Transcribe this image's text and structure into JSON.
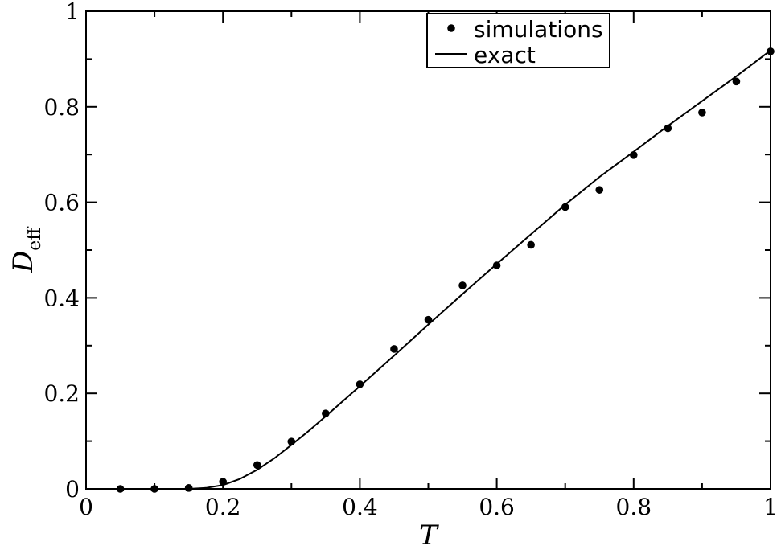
{
  "chart_data": {
    "type": "scatter",
    "xlabel": "T",
    "ylabel_main": "D",
    "ylabel_sub": "eff",
    "xlim": [
      0,
      1
    ],
    "ylim": [
      0,
      1
    ],
    "x_ticks": [
      "0",
      "0.2",
      "0.4",
      "0.6",
      "0.8",
      "1"
    ],
    "y_ticks": [
      "0",
      "0.2",
      "0.4",
      "0.6",
      "0.8",
      "1"
    ],
    "x_tick_values": [
      0,
      0.2,
      0.4,
      0.6,
      0.8,
      1
    ],
    "y_tick_values": [
      0,
      0.2,
      0.4,
      0.6,
      0.8,
      1
    ],
    "grid": false,
    "legend_position": "top-right",
    "series": [
      {
        "name": "simulations",
        "style": "markers",
        "color": "#000000",
        "x": [
          0.05,
          0.1,
          0.15,
          0.2,
          0.25,
          0.3,
          0.35,
          0.4,
          0.45,
          0.5,
          0.55,
          0.6,
          0.65,
          0.7,
          0.75,
          0.8,
          0.85,
          0.9,
          0.95,
          1.0
        ],
        "y": [
          0.0,
          0.0,
          0.002,
          0.015,
          0.05,
          0.099,
          0.158,
          0.219,
          0.293,
          0.354,
          0.426,
          0.468,
          0.511,
          0.59,
          0.626,
          0.699,
          0.755,
          0.788,
          0.853,
          0.916
        ]
      },
      {
        "name": "exact",
        "style": "line",
        "color": "#000000",
        "x": [
          0.0,
          0.05,
          0.1,
          0.15,
          0.175,
          0.2,
          0.225,
          0.25,
          0.275,
          0.3,
          0.325,
          0.35,
          0.4,
          0.45,
          0.5,
          0.55,
          0.6,
          0.65,
          0.7,
          0.75,
          0.8,
          0.85,
          0.9,
          0.95,
          1.0
        ],
        "y": [
          0.0,
          0.0,
          0.0,
          0.0,
          0.002,
          0.008,
          0.021,
          0.04,
          0.064,
          0.092,
          0.121,
          0.152,
          0.215,
          0.279,
          0.344,
          0.408,
          0.471,
          0.533,
          0.595,
          0.653,
          0.706,
          0.76,
          0.812,
          0.864,
          0.918
        ]
      }
    ]
  }
}
